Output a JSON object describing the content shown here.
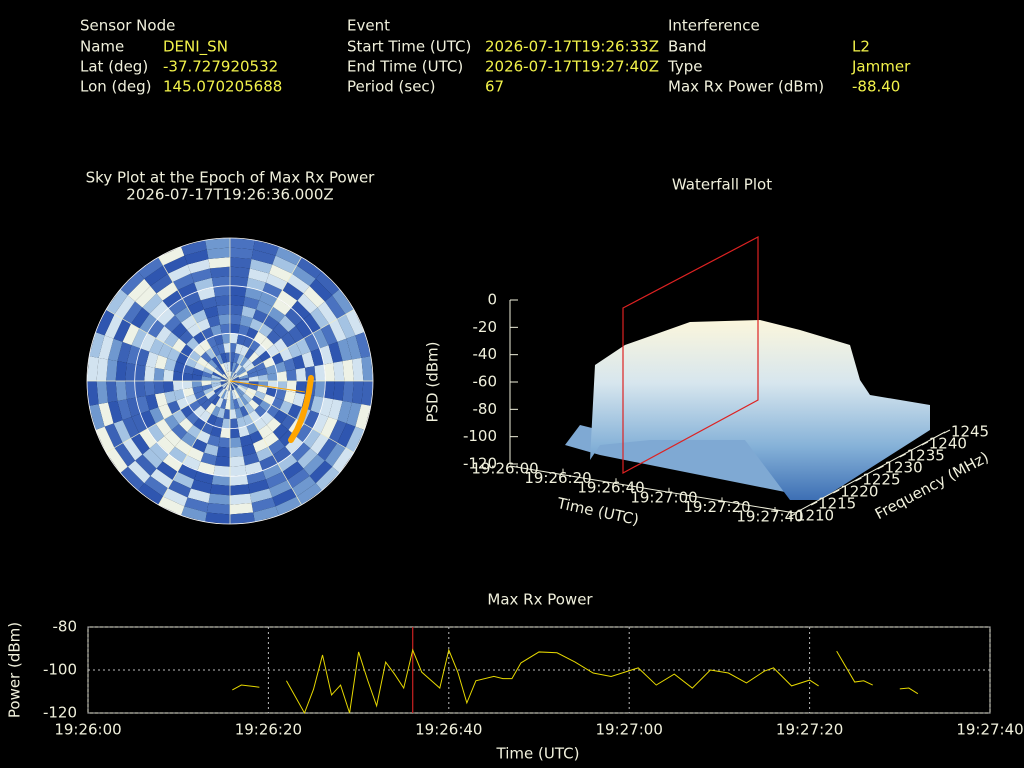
{
  "info": {
    "sensor": {
      "title": "Sensor Node",
      "rows": [
        [
          "Name",
          "DENI_SN"
        ],
        [
          "Lat (deg)",
          "-37.727920532"
        ],
        [
          "Lon (deg)",
          "145.070205688"
        ]
      ]
    },
    "event": {
      "title": "Event",
      "rows": [
        [
          "Start Time (UTC)",
          "2026-07-17T19:26:33Z"
        ],
        [
          "End Time (UTC)",
          "2026-07-17T19:27:40Z"
        ],
        [
          "Period (sec)",
          "67"
        ]
      ]
    },
    "interference": {
      "title": "Interference",
      "rows": [
        [
          "Band",
          "L2"
        ],
        [
          "Type",
          "Jammer"
        ],
        [
          "Max Rx Power (dBm)",
          "-88.40"
        ]
      ]
    }
  },
  "chart_data": [
    {
      "type": "skyplot",
      "title": "Sky Plot at the Epoch of Max Rx Power",
      "subtitle": "2026-07-17T19:26:36.000Z",
      "track_color": "#ffa500"
    },
    {
      "type": "waterfall",
      "title": "Waterfall Plot",
      "zlabel": "PSD (dBm)",
      "xlabel": "Time (UTC)",
      "ylabel": "Frequency (MHz)",
      "zlim": [
        -120,
        0
      ],
      "zticks": [
        0,
        -20,
        -40,
        -60,
        -80,
        -100,
        -120
      ],
      "xlim": [
        "19:26:00",
        "19:27:40"
      ],
      "xticks": [
        "19:26:00",
        "19:26:20",
        "19:26:40",
        "19:27:00",
        "19:27:20",
        "19:27:40"
      ],
      "ylim": [
        1210,
        1245
      ],
      "yticks": [
        1210,
        1215,
        1220,
        1225,
        1230,
        1235,
        1240,
        1245
      ]
    },
    {
      "type": "line",
      "title": "Max Rx Power",
      "xlabel": "Time (UTC)",
      "ylabel": "Power (dBm)",
      "color": "#e6d800",
      "cursor_x": "19:26:36",
      "cursor_color": "#cc2222",
      "grid": true,
      "xlim": [
        "19:26:00",
        "19:27:40"
      ],
      "xticks": [
        "19:26:00",
        "19:26:20",
        "19:26:40",
        "19:27:00",
        "19:27:20",
        "19:27:40"
      ],
      "ylim": [
        -120,
        -80
      ],
      "yticks": [
        -80,
        -100,
        -120
      ],
      "x": [
        "19:26:16",
        "19:26:17",
        "19:26:19",
        null,
        "19:26:22",
        "19:26:24",
        "19:26:25",
        "19:26:26",
        "19:26:27",
        "19:26:28",
        "19:26:29",
        "19:26:30",
        "19:26:31",
        "19:26:32",
        "19:26:33",
        "19:26:34",
        "19:26:35",
        "19:26:36",
        "19:26:37",
        "19:26:38",
        "19:26:39",
        "19:26:40",
        "19:26:41",
        "19:26:42",
        "19:26:43",
        "19:26:45",
        "19:26:46",
        "19:26:47",
        "19:26:48",
        "19:26:50",
        "19:26:52",
        "19:26:54",
        "19:26:56",
        "19:26:58",
        "19:27:01",
        "19:27:03",
        "19:27:05",
        "19:27:07",
        "19:27:09",
        "19:27:11",
        "19:27:13",
        "19:27:15",
        "19:27:16",
        "19:27:18",
        "19:27:20",
        "19:27:21",
        null,
        "19:27:23",
        "19:27:25",
        "19:27:26",
        "19:27:27",
        null,
        "19:27:30",
        "19:27:31",
        "19:27:32"
      ],
      "values": [
        -109.3,
        -107,
        -108,
        null,
        -105,
        -120,
        -109,
        -93,
        -111.6,
        -107,
        -120,
        -91.6,
        -104.7,
        -116.7,
        -96.3,
        -102,
        -108.4,
        -90.7,
        -101,
        -104.7,
        -108.4,
        -90.7,
        -101,
        -115.3,
        -105,
        -103,
        -104,
        -104,
        -96.7,
        -91.6,
        -92,
        -96.3,
        -101.4,
        -103,
        -99,
        -107,
        -101.9,
        -108.4,
        -100,
        -101.4,
        -106,
        -100.5,
        -99,
        -107.4,
        -104.7,
        -107.4,
        null,
        -91.2,
        -105.6,
        -105,
        -107,
        null,
        -108.8,
        -108.4,
        -111
      ]
    }
  ]
}
